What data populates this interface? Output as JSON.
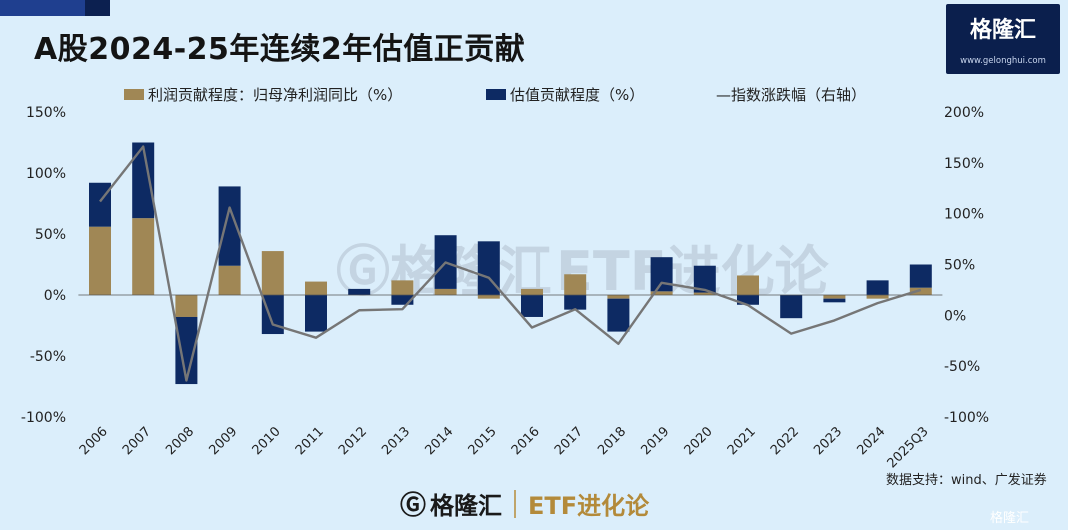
{
  "header": {
    "title": "A股2024-25年连续2年估值正贡献"
  },
  "logo": {
    "brand": "格隆汇",
    "site": "www.gelonghui.com",
    "icon": "g-logo-icon"
  },
  "legend": {
    "profit": "利润贡献程度：归母净利润同比（%）",
    "valuation": "估值贡献程度（%）",
    "index": "—指数涨跌幅（右轴）"
  },
  "watermark": {
    "brand": "格隆汇",
    "divider": "|",
    "etf": "ETF进化论"
  },
  "source": "数据支持：wind、广发证券",
  "bottom": {
    "brand": "格隆汇",
    "etf": "ETF进化论"
  },
  "corner": "格隆汇",
  "colors": {
    "profit": "#a08755",
    "valuation": "#0d2a63",
    "index": "#767676",
    "background": "#dbeefb"
  },
  "chart_data": {
    "type": "bar",
    "stacked": true,
    "categories": [
      "2006",
      "2007",
      "2008",
      "2009",
      "2010",
      "2011",
      "2012",
      "2013",
      "2014",
      "2015",
      "2016",
      "2017",
      "2018",
      "2019",
      "2020",
      "2021",
      "2022",
      "2023",
      "2024",
      "2025Q3"
    ],
    "series": [
      {
        "name": "利润贡献程度：归母净利润同比（%）",
        "axis": "left",
        "values": [
          56,
          63,
          -18,
          24,
          36,
          11,
          0,
          12,
          5,
          -3,
          5,
          17,
          -3,
          3,
          2,
          16,
          0,
          -3,
          -3,
          6
        ]
      },
      {
        "name": "估值贡献程度（%）",
        "axis": "left",
        "values": [
          36,
          62,
          -55,
          65,
          -32,
          -30,
          5,
          -8,
          44,
          44,
          -18,
          -12,
          -27,
          28,
          22,
          -8,
          -19,
          -3,
          12,
          19
        ]
      },
      {
        "name": "指数涨跌幅（右轴）",
        "type": "line",
        "axis": "right",
        "values": [
          112,
          166,
          -64,
          106,
          -9,
          -22,
          5,
          6,
          52,
          37,
          -12,
          6,
          -28,
          32,
          25,
          10,
          -18,
          -5,
          12,
          25
        ]
      }
    ],
    "yaxis_left": {
      "min": -100,
      "max": 150,
      "ticks": [
        "150%",
        "100%",
        "50%",
        "0%",
        "-50%",
        "-100%"
      ]
    },
    "yaxis_right": {
      "min": -100,
      "max": 200,
      "ticks": [
        "200%",
        "150%",
        "100%",
        "50%",
        "0%",
        "-50%",
        "-100%"
      ]
    },
    "legend_position": "top",
    "grid": false
  }
}
